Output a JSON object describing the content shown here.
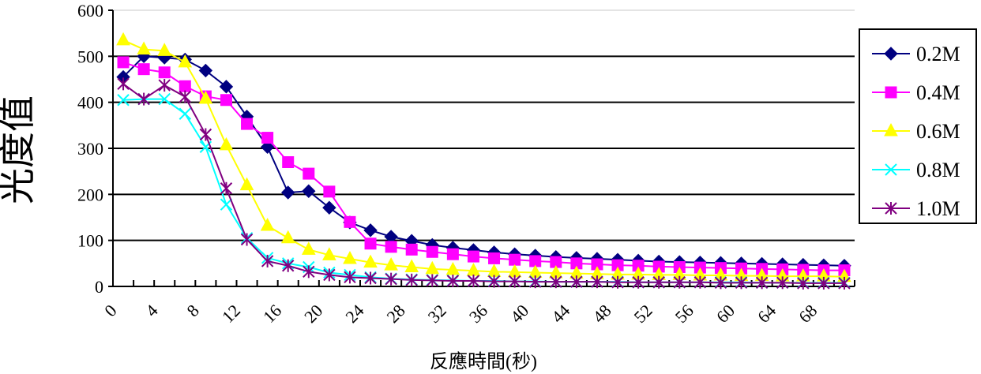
{
  "chart_data": {
    "type": "line",
    "title": "",
    "xlabel": "反應時間(秒)",
    "ylabel": "光度值",
    "xlim": [
      0,
      72
    ],
    "ylim": [
      0,
      600
    ],
    "x_tick_labels": [
      "0",
      "4",
      "8",
      "12",
      "16",
      "20",
      "24",
      "28",
      "32",
      "36",
      "40",
      "44",
      "48",
      "52",
      "56",
      "60",
      "64",
      "68"
    ],
    "y_tick_labels": [
      "0",
      "100",
      "200",
      "300",
      "400",
      "500",
      "600"
    ],
    "grid": "horizontal",
    "legend_position": "right",
    "x": [
      1,
      3,
      5,
      7,
      9,
      11,
      13,
      15,
      17,
      19,
      21,
      23,
      25,
      27,
      29,
      31,
      33,
      35,
      37,
      39,
      41,
      43,
      45,
      47,
      49,
      51,
      53,
      55,
      57,
      59,
      61,
      63,
      65,
      67,
      69,
      71
    ],
    "series": [
      {
        "name": "0.2M",
        "color": "#000080",
        "marker": "diamond",
        "values": [
          455,
          500,
          497,
          493,
          469,
          434,
          369,
          303,
          204,
          207,
          171,
          139,
          122,
          108,
          99,
          90,
          84,
          79,
          74,
          70,
          67,
          64,
          62,
          60,
          58,
          56,
          54,
          53,
          52,
          51,
          50,
          49,
          48,
          47,
          46,
          45
        ]
      },
      {
        "name": "0.4M",
        "color": "#ff00ff",
        "marker": "square",
        "values": [
          487,
          472,
          465,
          435,
          413,
          405,
          353,
          323,
          270,
          245,
          206,
          140,
          93,
          86,
          80,
          75,
          70,
          65,
          61,
          58,
          55,
          53,
          50,
          48,
          46,
          45,
          43,
          42,
          41,
          40,
          39,
          38,
          37,
          36,
          35,
          35
        ]
      },
      {
        "name": "0.6M",
        "color": "#ffff00",
        "marker": "triangle",
        "values": [
          535,
          515,
          512,
          487,
          408,
          307,
          220,
          132,
          105,
          80,
          68,
          60,
          52,
          46,
          42,
          38,
          36,
          34,
          32,
          31,
          30,
          29,
          28,
          27,
          26,
          26,
          25,
          25,
          24,
          24,
          23,
          23,
          22,
          22,
          22,
          21
        ]
      },
      {
        "name": "0.8M",
        "color": "#00ffff",
        "marker": "x",
        "values": [
          405,
          407,
          407,
          375,
          303,
          178,
          105,
          62,
          50,
          42,
          30,
          25,
          20,
          17,
          15,
          14,
          13,
          12,
          12,
          11,
          11,
          10,
          10,
          10,
          10,
          9,
          9,
          9,
          9,
          9,
          9,
          8,
          8,
          8,
          8,
          8
        ]
      },
      {
        "name": "1.0M",
        "color": "#800080",
        "marker": "asterisk",
        "values": [
          440,
          407,
          437,
          412,
          330,
          213,
          102,
          55,
          45,
          32,
          25,
          20,
          18,
          16,
          14,
          13,
          12,
          12,
          11,
          11,
          10,
          10,
          10,
          10,
          9,
          9,
          9,
          9,
          9,
          8,
          8,
          8,
          8,
          7,
          7,
          7
        ]
      }
    ]
  }
}
